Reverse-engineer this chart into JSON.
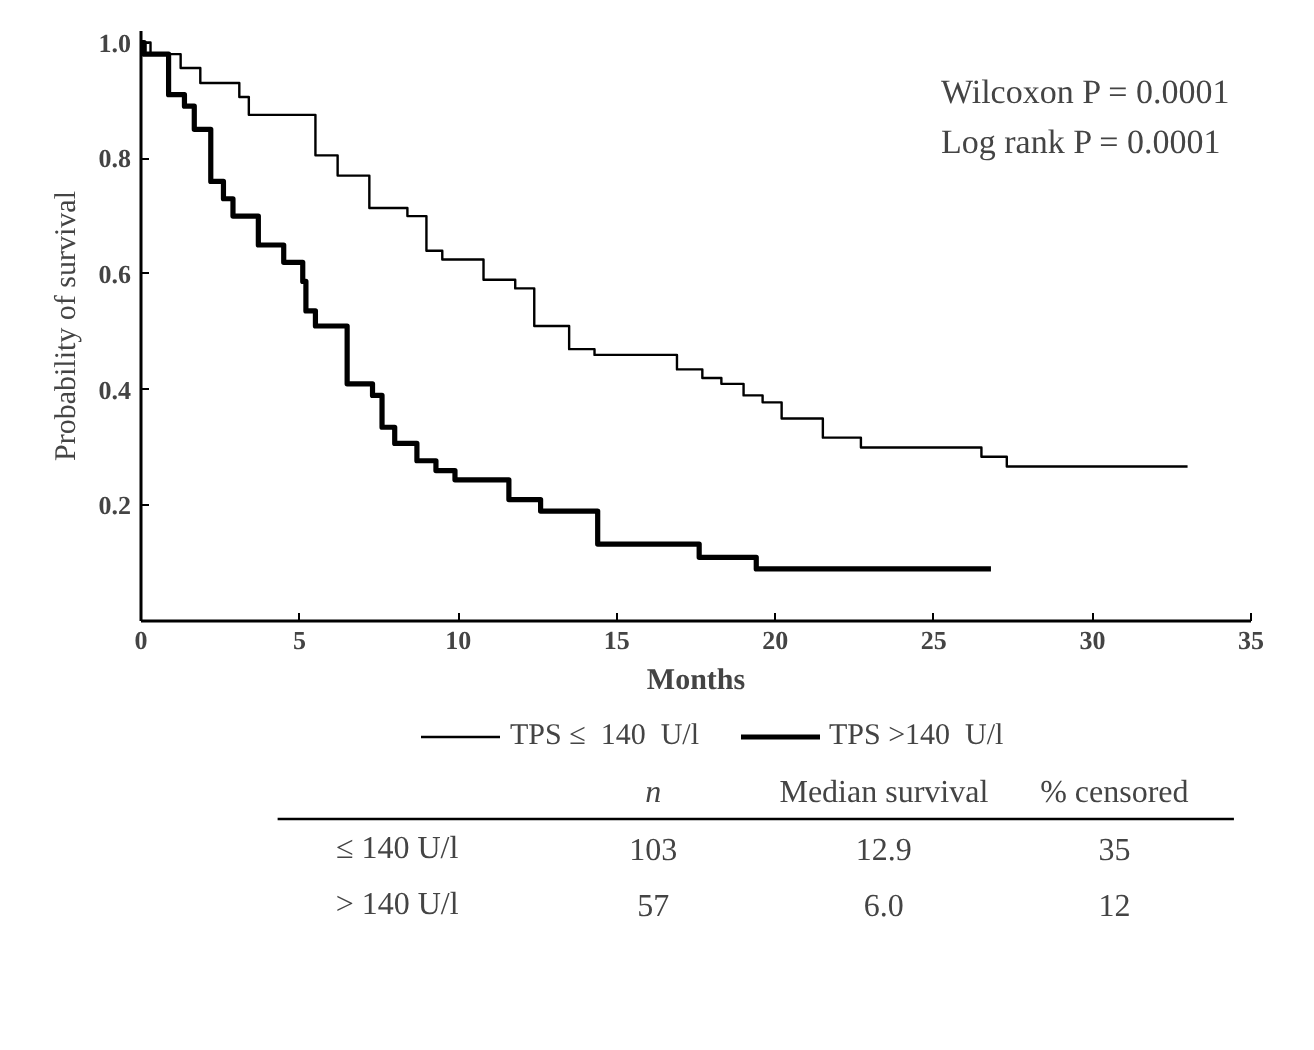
{
  "chart_data": {
    "type": "step",
    "xlabel": "Months",
    "ylabel": "Probability of survival",
    "xlim": [
      0,
      35
    ],
    "ylim": [
      0,
      1.02
    ],
    "xticks": [
      0,
      5,
      10,
      15,
      20,
      25,
      30,
      35
    ],
    "yticks": [
      0.2,
      0.4,
      0.6,
      0.8,
      {
        "value": 1.0,
        "label": "1.0"
      }
    ],
    "grid": false,
    "legend": "bottom",
    "line_style": "solid",
    "marker": "none",
    "series": [
      {
        "name": "TPS ≤  140  U/l",
        "color": "#000000",
        "x": [
          0,
          0.3,
          1.25,
          1.87,
          3.1,
          3.4,
          4.7,
          5.5,
          6.2,
          7.2,
          8.4,
          9.0,
          9.5,
          10.8,
          11.8,
          12.4,
          13.5,
          14.3,
          16.9,
          17.7,
          18.3,
          19.0,
          19.6,
          20.2,
          21.5,
          22.7,
          26.5,
          27.3,
          33.0
        ],
        "values": [
          1.0,
          0.98,
          0.956,
          0.93,
          0.906,
          0.875,
          0.875,
          0.805,
          0.77,
          0.714,
          0.7,
          0.64,
          0.625,
          0.59,
          0.575,
          0.51,
          0.47,
          0.46,
          0.435,
          0.42,
          0.41,
          0.39,
          0.378,
          0.35,
          0.317,
          0.3,
          0.284,
          0.267,
          0.267
        ]
      },
      {
        "name": "TPS >140  U/l",
        "color": "#000000",
        "x": [
          0,
          0.1,
          0.87,
          1.37,
          1.68,
          2.2,
          2.6,
          2.9,
          3.7,
          4.5,
          5.1,
          5.2,
          5.5,
          6.5,
          7.3,
          7.6,
          8.0,
          8.7,
          9.3,
          9.9,
          11.6,
          12.6,
          14.4,
          17.6,
          19.4,
          26.8
        ],
        "values": [
          1.0,
          0.98,
          0.91,
          0.89,
          0.85,
          0.76,
          0.73,
          0.7,
          0.65,
          0.62,
          0.587,
          0.536,
          0.51,
          0.41,
          0.39,
          0.335,
          0.307,
          0.277,
          0.26,
          0.244,
          0.21,
          0.19,
          0.133,
          0.11,
          0.09,
          0.09
        ]
      }
    ],
    "annotations": [
      "Wilcoxon P = 0.0001",
      "Log rank P = 0.0001",
      "n",
      "Median survival",
      "% censored",
      "≤ 140 U/l",
      "103",
      "12.9",
      "35",
      "> 140 U/l",
      "57",
      "6.0",
      "12"
    ]
  }
}
